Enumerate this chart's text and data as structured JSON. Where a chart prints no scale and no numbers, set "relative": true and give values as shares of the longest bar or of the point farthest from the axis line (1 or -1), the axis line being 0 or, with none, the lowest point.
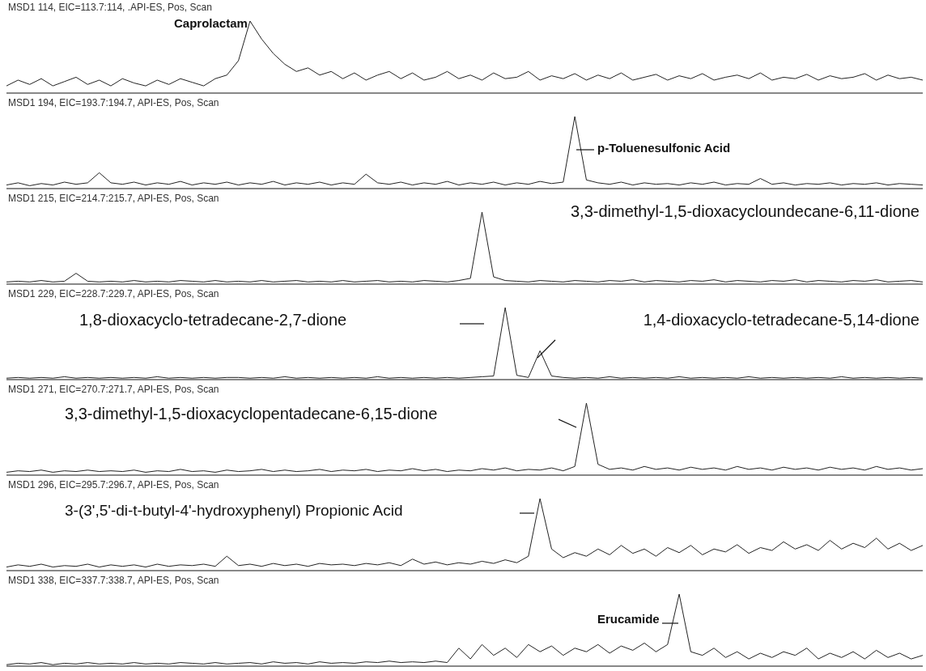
{
  "chart_data": [
    {
      "type": "line",
      "title": "MSD1 114, EIC=113.7:114, .API-ES, Pos, Scan",
      "annotations": [
        "Caprolactam"
      ],
      "relative": true,
      "tick_labels": false,
      "color": "#222222",
      "categories": [
        null,
        null,
        null,
        null,
        null,
        null,
        null,
        null,
        null,
        null,
        null,
        null,
        null,
        null,
        null,
        null,
        null,
        null,
        null,
        null,
        null,
        null,
        null,
        null,
        null,
        null,
        null,
        null,
        null,
        null,
        null,
        null,
        null,
        null,
        null,
        null,
        null,
        null,
        null,
        null,
        null,
        null,
        null,
        null,
        null,
        null,
        null,
        null,
        null,
        null,
        null,
        null,
        null,
        null,
        null,
        null,
        null,
        null,
        null,
        null,
        null,
        null,
        null,
        null,
        null,
        null,
        null,
        null,
        null,
        null,
        null,
        null,
        null,
        null,
        null,
        null,
        null,
        null,
        null,
        null
      ],
      "values": [
        0.1,
        0.18,
        0.12,
        0.2,
        0.1,
        0.16,
        0.22,
        0.12,
        0.18,
        0.1,
        0.2,
        0.14,
        0.1,
        0.18,
        0.12,
        0.2,
        0.15,
        0.1,
        0.2,
        0.25,
        0.45,
        1,
        0.75,
        0.55,
        0.4,
        0.3,
        0.35,
        0.25,
        0.3,
        0.2,
        0.28,
        0.18,
        0.25,
        0.3,
        0.2,
        0.28,
        0.18,
        0.22,
        0.3,
        0.2,
        0.25,
        0.18,
        0.28,
        0.2,
        0.22,
        0.3,
        0.18,
        0.24,
        0.2,
        0.27,
        0.18,
        0.25,
        0.2,
        0.28,
        0.18,
        0.22,
        0.26,
        0.18,
        0.24,
        0.2,
        0.27,
        0.18,
        0.22,
        0.25,
        0.2,
        0.28,
        0.18,
        0.22,
        0.2,
        0.26,
        0.18,
        0.24,
        0.2,
        0.22,
        0.27,
        0.18,
        0.25,
        0.2,
        0.22,
        0.18
      ]
    },
    {
      "type": "line",
      "title": "MSD1 194, EIC=193.7:194.7,  API-ES, Pos, Scan",
      "annotations": [
        "p-Toluenesulfonic Acid"
      ],
      "relative": true,
      "tick_labels": false,
      "color": "#222222",
      "categories": [
        null,
        null,
        null,
        null,
        null,
        null,
        null,
        null,
        null,
        null,
        null,
        null,
        null,
        null,
        null,
        null,
        null,
        null,
        null,
        null,
        null,
        null,
        null,
        null,
        null,
        null,
        null,
        null,
        null,
        null,
        null,
        null,
        null,
        null,
        null,
        null,
        null,
        null,
        null,
        null,
        null,
        null,
        null,
        null,
        null,
        null,
        null,
        null,
        null,
        null,
        null,
        null,
        null,
        null,
        null,
        null,
        null,
        null,
        null,
        null,
        null,
        null,
        null,
        null,
        null,
        null,
        null,
        null,
        null,
        null,
        null,
        null,
        null,
        null,
        null,
        null,
        null,
        null,
        null,
        null
      ],
      "values": [
        0.05,
        0.08,
        0.04,
        0.07,
        0.05,
        0.09,
        0.06,
        0.08,
        0.22,
        0.08,
        0.06,
        0.09,
        0.05,
        0.08,
        0.06,
        0.1,
        0.05,
        0.08,
        0.06,
        0.09,
        0.05,
        0.08,
        0.06,
        0.1,
        0.05,
        0.08,
        0.06,
        0.09,
        0.05,
        0.08,
        0.06,
        0.2,
        0.08,
        0.06,
        0.09,
        0.05,
        0.08,
        0.06,
        0.1,
        0.05,
        0.08,
        0.06,
        0.09,
        0.05,
        0.08,
        0.06,
        0.1,
        0.07,
        0.09,
        1,
        0.12,
        0.08,
        0.06,
        0.09,
        0.05,
        0.08,
        0.06,
        0.07,
        0.05,
        0.08,
        0.06,
        0.09,
        0.05,
        0.07,
        0.06,
        0.14,
        0.06,
        0.08,
        0.05,
        0.07,
        0.06,
        0.08,
        0.05,
        0.07,
        0.06,
        0.08,
        0.05,
        0.07,
        0.06,
        0.05
      ]
    },
    {
      "type": "line",
      "title": "MSD1 215, EIC=214.7:215.7,  API-ES, Pos, Scan",
      "annotations": [
        "3,3-dimethyl-1,5-dioxacycloundecane-6,11-dione"
      ],
      "relative": true,
      "tick_labels": false,
      "color": "#222222",
      "categories": [
        null,
        null,
        null,
        null,
        null,
        null,
        null,
        null,
        null,
        null,
        null,
        null,
        null,
        null,
        null,
        null,
        null,
        null,
        null,
        null,
        null,
        null,
        null,
        null,
        null,
        null,
        null,
        null,
        null,
        null,
        null,
        null,
        null,
        null,
        null,
        null,
        null,
        null,
        null,
        null,
        null,
        null,
        null,
        null,
        null,
        null,
        null,
        null,
        null,
        null,
        null,
        null,
        null,
        null,
        null,
        null,
        null,
        null,
        null,
        null,
        null,
        null,
        null,
        null,
        null,
        null,
        null,
        null,
        null,
        null,
        null,
        null,
        null,
        null,
        null,
        null,
        null,
        null,
        null,
        null
      ],
      "values": [
        0.03,
        0.04,
        0.03,
        0.05,
        0.03,
        0.04,
        0.15,
        0.04,
        0.03,
        0.04,
        0.03,
        0.05,
        0.03,
        0.04,
        0.03,
        0.05,
        0.04,
        0.03,
        0.05,
        0.03,
        0.04,
        0.03,
        0.05,
        0.03,
        0.04,
        0.05,
        0.03,
        0.04,
        0.03,
        0.05,
        0.03,
        0.04,
        0.05,
        0.03,
        0.04,
        0.03,
        0.05,
        0.04,
        0.03,
        0.05,
        0.08,
        1,
        0.1,
        0.05,
        0.04,
        0.03,
        0.05,
        0.04,
        0.03,
        0.05,
        0.04,
        0.03,
        0.05,
        0.04,
        0.06,
        0.03,
        0.05,
        0.04,
        0.03,
        0.05,
        0.04,
        0.06,
        0.03,
        0.05,
        0.04,
        0.03,
        0.05,
        0.04,
        0.06,
        0.03,
        0.05,
        0.04,
        0.03,
        0.05,
        0.04,
        0.06,
        0.03,
        0.04,
        0.05,
        0.03
      ]
    },
    {
      "type": "line",
      "title": "MSD1 229, EIC=228.7:229.7,  API-ES, Pos, Scan",
      "annotations": [
        "1,8-dioxacyclo-tetradecane-2,7-dione",
        "1,4-dioxacyclo-tetradecane-5,14-dione"
      ],
      "relative": true,
      "tick_labels": false,
      "color": "#222222",
      "categories": [
        null,
        null,
        null,
        null,
        null,
        null,
        null,
        null,
        null,
        null,
        null,
        null,
        null,
        null,
        null,
        null,
        null,
        null,
        null,
        null,
        null,
        null,
        null,
        null,
        null,
        null,
        null,
        null,
        null,
        null,
        null,
        null,
        null,
        null,
        null,
        null,
        null,
        null,
        null,
        null,
        null,
        null,
        null,
        null,
        null,
        null,
        null,
        null,
        null,
        null,
        null,
        null,
        null,
        null,
        null,
        null,
        null,
        null,
        null,
        null,
        null,
        null,
        null,
        null,
        null,
        null,
        null,
        null,
        null,
        null,
        null,
        null,
        null,
        null,
        null,
        null,
        null,
        null,
        null,
        null
      ],
      "values": [
        0.02,
        0.03,
        0.02,
        0.03,
        0.02,
        0.04,
        0.02,
        0.03,
        0.02,
        0.03,
        0.02,
        0.03,
        0.02,
        0.04,
        0.02,
        0.03,
        0.02,
        0.03,
        0.02,
        0.03,
        0.03,
        0.02,
        0.03,
        0.02,
        0.04,
        0.02,
        0.03,
        0.02,
        0.03,
        0.02,
        0.03,
        0.02,
        0.04,
        0.02,
        0.03,
        0.02,
        0.03,
        0.02,
        0.03,
        0.02,
        0.03,
        0.04,
        0.05,
        1,
        0.06,
        0.03,
        0.4,
        0.05,
        0.03,
        0.02,
        0.03,
        0.02,
        0.04,
        0.02,
        0.03,
        0.02,
        0.03,
        0.02,
        0.04,
        0.02,
        0.03,
        0.02,
        0.03,
        0.02,
        0.04,
        0.02,
        0.03,
        0.02,
        0.03,
        0.02,
        0.03,
        0.02,
        0.04,
        0.02,
        0.03,
        0.02,
        0.03,
        0.02,
        0.03,
        0.02
      ]
    },
    {
      "type": "line",
      "title": "MSD1 271, EIC=270.7:271.7,  API-ES, Pos, Scan",
      "annotations": [
        "3,3-dimethyl-1,5-dioxacyclopentadecane-6,15-dione"
      ],
      "relative": true,
      "tick_labels": false,
      "color": "#222222",
      "categories": [
        null,
        null,
        null,
        null,
        null,
        null,
        null,
        null,
        null,
        null,
        null,
        null,
        null,
        null,
        null,
        null,
        null,
        null,
        null,
        null,
        null,
        null,
        null,
        null,
        null,
        null,
        null,
        null,
        null,
        null,
        null,
        null,
        null,
        null,
        null,
        null,
        null,
        null,
        null,
        null,
        null,
        null,
        null,
        null,
        null,
        null,
        null,
        null,
        null,
        null,
        null,
        null,
        null,
        null,
        null,
        null,
        null,
        null,
        null,
        null,
        null,
        null,
        null,
        null,
        null,
        null,
        null,
        null,
        null,
        null,
        null,
        null,
        null,
        null,
        null,
        null,
        null,
        null,
        null,
        null
      ],
      "values": [
        0.04,
        0.06,
        0.05,
        0.07,
        0.04,
        0.06,
        0.05,
        0.07,
        0.05,
        0.06,
        0.05,
        0.07,
        0.04,
        0.06,
        0.05,
        0.08,
        0.05,
        0.06,
        0.04,
        0.07,
        0.05,
        0.06,
        0.08,
        0.05,
        0.07,
        0.05,
        0.06,
        0.08,
        0.05,
        0.07,
        0.06,
        0.08,
        0.05,
        0.07,
        0.06,
        0.09,
        0.06,
        0.08,
        0.05,
        0.07,
        0.06,
        0.09,
        0.07,
        0.1,
        0.06,
        0.08,
        0.07,
        0.1,
        0.06,
        0.12,
        1,
        0.15,
        0.08,
        0.1,
        0.07,
        0.12,
        0.08,
        0.1,
        0.07,
        0.11,
        0.08,
        0.1,
        0.07,
        0.12,
        0.08,
        0.1,
        0.07,
        0.11,
        0.08,
        0.1,
        0.07,
        0.11,
        0.08,
        0.1,
        0.07,
        0.12,
        0.08,
        0.1,
        0.07,
        0.09
      ]
    },
    {
      "type": "line",
      "title": "MSD1 296, EIC=295.7:296.7,  API-ES, Pos, Scan",
      "annotations": [
        "3-(3',5'-di-t-butyl-4'-hydroxyphenyl) Propionic Acid"
      ],
      "relative": true,
      "tick_labels": false,
      "color": "#222222",
      "categories": [
        null,
        null,
        null,
        null,
        null,
        null,
        null,
        null,
        null,
        null,
        null,
        null,
        null,
        null,
        null,
        null,
        null,
        null,
        null,
        null,
        null,
        null,
        null,
        null,
        null,
        null,
        null,
        null,
        null,
        null,
        null,
        null,
        null,
        null,
        null,
        null,
        null,
        null,
        null,
        null,
        null,
        null,
        null,
        null,
        null,
        null,
        null,
        null,
        null,
        null,
        null,
        null,
        null,
        null,
        null,
        null,
        null,
        null,
        null,
        null,
        null,
        null,
        null,
        null,
        null,
        null,
        null,
        null,
        null,
        null,
        null,
        null,
        null,
        null,
        null,
        null,
        null,
        null,
        null,
        null
      ],
      "values": [
        0.05,
        0.08,
        0.06,
        0.09,
        0.05,
        0.07,
        0.06,
        0.09,
        0.05,
        0.08,
        0.06,
        0.08,
        0.05,
        0.09,
        0.06,
        0.08,
        0.07,
        0.09,
        0.06,
        0.2,
        0.07,
        0.09,
        0.06,
        0.1,
        0.07,
        0.09,
        0.06,
        0.1,
        0.08,
        0.09,
        0.07,
        0.1,
        0.08,
        0.11,
        0.07,
        0.16,
        0.09,
        0.12,
        0.08,
        0.11,
        0.09,
        0.13,
        0.1,
        0.15,
        0.11,
        0.2,
        1,
        0.3,
        0.18,
        0.25,
        0.2,
        0.3,
        0.22,
        0.35,
        0.24,
        0.3,
        0.2,
        0.32,
        0.25,
        0.35,
        0.22,
        0.3,
        0.26,
        0.36,
        0.24,
        0.32,
        0.28,
        0.4,
        0.3,
        0.36,
        0.28,
        0.42,
        0.3,
        0.38,
        0.32,
        0.45,
        0.3,
        0.38,
        0.28,
        0.35
      ]
    },
    {
      "type": "line",
      "title": "MSD1 338, EIC=337.7:338.7,  API-ES, Pos, Scan",
      "annotations": [
        "Erucamide"
      ],
      "relative": true,
      "tick_labels": false,
      "color": "#222222",
      "categories": [
        null,
        null,
        null,
        null,
        null,
        null,
        null,
        null,
        null,
        null,
        null,
        null,
        null,
        null,
        null,
        null,
        null,
        null,
        null,
        null,
        null,
        null,
        null,
        null,
        null,
        null,
        null,
        null,
        null,
        null,
        null,
        null,
        null,
        null,
        null,
        null,
        null,
        null,
        null,
        null,
        null,
        null,
        null,
        null,
        null,
        null,
        null,
        null,
        null,
        null,
        null,
        null,
        null,
        null,
        null,
        null,
        null,
        null,
        null,
        null,
        null,
        null,
        null,
        null,
        null,
        null,
        null,
        null,
        null,
        null,
        null,
        null,
        null,
        null,
        null,
        null,
        null,
        null,
        null,
        null
      ],
      "values": [
        0.02,
        0.04,
        0.03,
        0.05,
        0.02,
        0.04,
        0.03,
        0.05,
        0.03,
        0.04,
        0.03,
        0.05,
        0.03,
        0.04,
        0.03,
        0.05,
        0.04,
        0.03,
        0.05,
        0.03,
        0.04,
        0.05,
        0.03,
        0.06,
        0.04,
        0.05,
        0.03,
        0.06,
        0.04,
        0.05,
        0.04,
        0.06,
        0.05,
        0.07,
        0.05,
        0.06,
        0.05,
        0.07,
        0.05,
        0.25,
        0.1,
        0.3,
        0.15,
        0.25,
        0.12,
        0.3,
        0.2,
        0.28,
        0.15,
        0.25,
        0.2,
        0.3,
        0.18,
        0.28,
        0.22,
        0.32,
        0.2,
        0.3,
        1,
        0.2,
        0.15,
        0.25,
        0.12,
        0.2,
        0.1,
        0.18,
        0.12,
        0.2,
        0.15,
        0.25,
        0.1,
        0.18,
        0.12,
        0.2,
        0.1,
        0.22,
        0.12,
        0.18,
        0.1,
        0.15
      ]
    }
  ]
}
